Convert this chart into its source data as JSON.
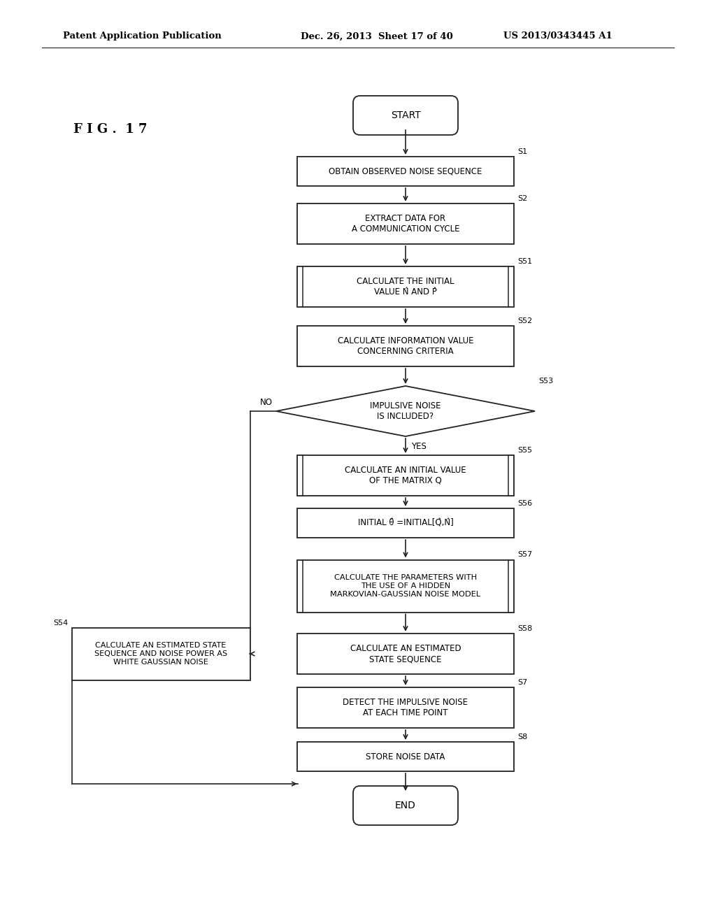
{
  "bg_color": "#ffffff",
  "text_color": "#000000",
  "header_left": "Patent Application Publication",
  "header_mid": "Dec. 26, 2013  Sheet 17 of 40",
  "header_right": "US 2013/0343445 A1",
  "fig_label": "F I G .  1 7",
  "line_color": "#222222"
}
